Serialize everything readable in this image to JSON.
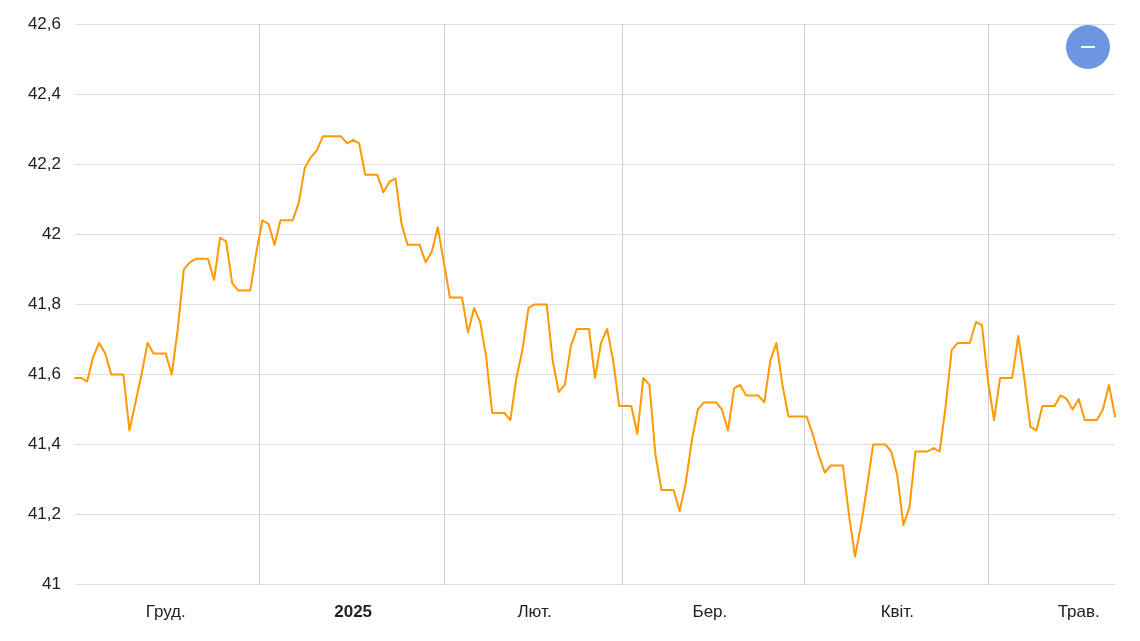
{
  "chart_data": {
    "type": "line",
    "categories": [
      null,
      null,
      null,
      null,
      null,
      null,
      null,
      null,
      null,
      null,
      null,
      null,
      null,
      null,
      null,
      "Груд.",
      null,
      null,
      null,
      null,
      null,
      null,
      null,
      null,
      null,
      null,
      null,
      null,
      null,
      null,
      null,
      null,
      null,
      null,
      null,
      null,
      null,
      null,
      null,
      null,
      null,
      null,
      null,
      null,
      null,
      null,
      "2025",
      null,
      null,
      null,
      null,
      null,
      null,
      null,
      null,
      null,
      null,
      null,
      null,
      null,
      null,
      null,
      null,
      null,
      null,
      null,
      null,
      null,
      null,
      null,
      null,
      null,
      null,
      null,
      null,
      null,
      "Лют.",
      null,
      null,
      null,
      null,
      null,
      null,
      null,
      null,
      null,
      null,
      null,
      null,
      null,
      null,
      null,
      null,
      null,
      null,
      null,
      null,
      null,
      null,
      null,
      null,
      null,
      null,
      null,
      null,
      "Бер.",
      null,
      null,
      null,
      null,
      null,
      null,
      null,
      null,
      null,
      null,
      null,
      null,
      null,
      null,
      null,
      null,
      null,
      null,
      null,
      null,
      null,
      null,
      null,
      null,
      null,
      null,
      null,
      null,
      null,
      null,
      "Квіт.",
      null,
      null,
      null,
      null,
      null,
      null,
      null,
      null,
      null,
      null,
      null,
      null,
      null,
      null,
      null,
      null,
      null,
      null,
      null,
      null,
      null,
      null,
      null,
      null,
      null,
      null,
      null,
      null,
      null,
      "Трав.",
      null,
      null,
      null,
      null,
      null,
      null
    ],
    "ylim": [
      41,
      42.6
    ],
    "yticks": [
      {
        "value": 41,
        "label": "41"
      },
      {
        "value": 41.2,
        "label": "41,2"
      },
      {
        "value": 41.4,
        "label": "41,4"
      },
      {
        "value": 41.6,
        "label": "41,6"
      },
      {
        "value": 41.8,
        "label": "41,8"
      },
      {
        "value": 42,
        "label": "42"
      },
      {
        "value": 42.2,
        "label": "42,2"
      },
      {
        "value": 42.4,
        "label": "42,4"
      },
      {
        "value": 42.6,
        "label": "42,6"
      }
    ],
    "grid": true,
    "legend": false,
    "marker": "none",
    "line_style": "solid",
    "series": [
      {
        "color": "#ff9900",
        "values": [
          41.59,
          41.59,
          41.58,
          41.65,
          41.69,
          41.66,
          41.6,
          41.6,
          41.6,
          41.44,
          41.52,
          41.6,
          41.69,
          41.66,
          41.66,
          41.66,
          41.6,
          41.73,
          41.9,
          41.92,
          41.93,
          41.93,
          41.93,
          41.87,
          41.99,
          41.98,
          41.86,
          41.84,
          41.84,
          41.84,
          41.95,
          42.04,
          42.03,
          41.97,
          42.04,
          42.04,
          42.04,
          42.09,
          42.19,
          42.22,
          42.24,
          42.28,
          42.28,
          42.28,
          42.28,
          42.26,
          42.27,
          42.26,
          42.17,
          42.17,
          42.17,
          42.12,
          42.15,
          42.16,
          42.03,
          41.97,
          41.97,
          41.97,
          41.92,
          41.95,
          42.02,
          41.92,
          41.82,
          41.82,
          41.82,
          41.72,
          41.79,
          41.75,
          41.65,
          41.49,
          41.49,
          41.49,
          41.47,
          41.59,
          41.67,
          41.79,
          41.8,
          41.8,
          41.8,
          41.64,
          41.55,
          41.57,
          41.68,
          41.73,
          41.73,
          41.73,
          41.59,
          41.69,
          41.73,
          41.64,
          41.51,
          41.51,
          41.51,
          41.43,
          41.59,
          41.57,
          41.37,
          41.27,
          41.27,
          41.27,
          41.21,
          41.29,
          41.41,
          41.5,
          41.52,
          41.52,
          41.52,
          41.5,
          41.44,
          41.56,
          41.57,
          41.54,
          41.54,
          41.54,
          41.52,
          41.64,
          41.69,
          41.57,
          41.48,
          41.48,
          41.48,
          41.48,
          41.43,
          41.37,
          41.32,
          41.34,
          41.34,
          41.34,
          41.2,
          41.08,
          41.17,
          41.28,
          41.4,
          41.4,
          41.4,
          41.38,
          41.31,
          41.17,
          41.22,
          41.38,
          41.38,
          41.38,
          41.39,
          41.38,
          41.51,
          41.67,
          41.69,
          41.69,
          41.69,
          41.75,
          41.74,
          41.58,
          41.47,
          41.59,
          41.59,
          41.59,
          41.71,
          41.59,
          41.45,
          41.44,
          41.51,
          41.51,
          41.51,
          41.54,
          41.53,
          41.5,
          41.53,
          41.47,
          41.47,
          41.47,
          41.5,
          41.57,
          41.48
        ]
      }
    ]
  }
}
